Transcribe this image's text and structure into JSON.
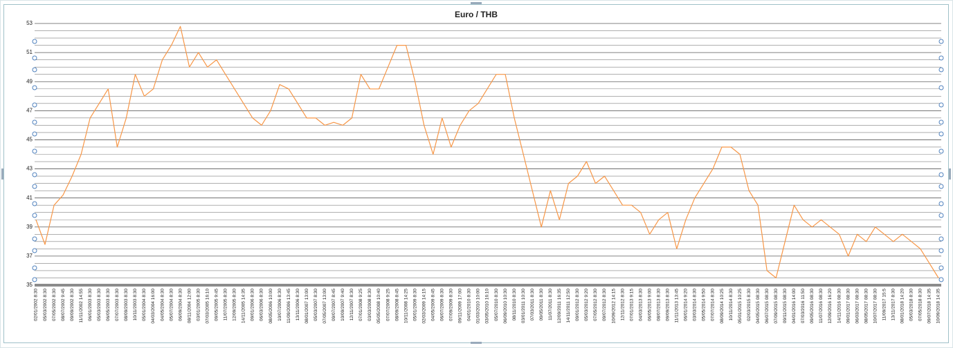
{
  "chart_data": {
    "type": "line",
    "title": "Euro / THB",
    "color": "#f79646",
    "ylim": [
      35,
      53
    ],
    "yticks": [
      35,
      37,
      39,
      41,
      43,
      45,
      47,
      49,
      51,
      53
    ],
    "minor_yticks": [
      35.5,
      36,
      36.5,
      37.5,
      38,
      38.5,
      39.5,
      40,
      40.5,
      41.5,
      42,
      42.5,
      43.5,
      44,
      44.5,
      45.5,
      46,
      46.5,
      47.5,
      48,
      48.5,
      49.5,
      50,
      50.5,
      51.5,
      52,
      52.5
    ],
    "grid": true,
    "categories": [
      "02/01/2002 8:30",
      "05/03/2002 8:30",
      "07/05/2002 8:30",
      "08/07/2002 9:45",
      "09/09/2002 8:30",
      "11/11/2002 14:55",
      "06/01/2003 8:30",
      "05/03/2003 8:30",
      "06/05/2003 8:30",
      "07/07/2003 8:30",
      "08/09/2003 8:30",
      "10/11/2003 8:30",
      "05/01/2004 8:30",
      "04/03/2004 16:00",
      "04/05/2004 8:30",
      "05/07/2004 8:30",
      "06/09/2004 8:30",
      "08/11/2004 12:00",
      "03/01/2005 8:30",
      "07/03/2005 16:10",
      "09/05/2005 9:45",
      "11/07/2005 8:30",
      "12/09/2005 8:30",
      "14/11/2005 14:35",
      "09/01/2006 8:30",
      "06/03/2006 8:30",
      "08/05/2006 10:00",
      "10/07/2006 8:30",
      "11/09/2006 13:45",
      "13/11/2006 8:30",
      "08/01/2007 13:00",
      "05/03/2007 8:30",
      "07/05/2007 13:00",
      "09/07/2007 8:45",
      "10/09/2007 9:40",
      "12/11/2007 8:30",
      "07/01/2008 9:25",
      "03/03/2008 8:30",
      "05/05/2008 10:40",
      "07/07/2008 9:25",
      "08/09/2008 8:45",
      "10/11/2008 14:25",
      "05/01/2009 8:30",
      "02/03/2009 14:15",
      "04/05/2009 8:45",
      "06/07/2009 8:30",
      "07/09/2009 8:30",
      "09/11/2009 17:00",
      "04/01/2010 8:30",
      "01/03/2010 10:00",
      "03/05/2010 16:10",
      "05/07/2010 8:30",
      "06/09/2010 10:30",
      "08/11/2010 8:30",
      "03/01/2011 10:30",
      "07/03/2011 8:30",
      "09/05/2011 8:30",
      "11/07/2011 8:30",
      "12/09/2011 16:35",
      "14/11/2011 12:50",
      "09/01/2012 8:30",
      "05/03/2012 9:20",
      "07/05/2012 8:30",
      "09/07/2012 8:30",
      "10/09/2012 14:15",
      "12/11/2012 8:30",
      "07/01/2013 9:15",
      "04/03/2013 8:30",
      "06/05/2013 9:00",
      "08/07/2013 8:30",
      "09/09/2013 8:30",
      "11/11/2013 13:45",
      "06/01/2014 9:20",
      "03/03/2014 8:30",
      "05/05/2014 9:50",
      "07/07/2014 8:30",
      "08/09/2014 10:25",
      "10/11/2014 8:30",
      "05/01/2015 10:25",
      "02/03/2015 8:30",
      "04/05/2015 08:30",
      "06/07/2015 08:30",
      "07/09/2015 08:30",
      "09/11/2015 08:30",
      "04/01/2016 14:00",
      "07/03/2016 11:50",
      "09/05/2016 08:30",
      "11/07/2016 08:30",
      "12/09/2016 16:20",
      "14/11/2016 08:30",
      "09/01/2017 08:30",
      "06/03/2017 08:30",
      "08/05/2017 08:30",
      "10/07/2017 08:30",
      "11/09/2017 15:5",
      "13/11/2017 8:30",
      "08/01/2018 14:20",
      "05/03/2018 8:30",
      "07/05/2018 8:30",
      "09/07/2018 14:35",
      "10/09/2018 14:35"
    ],
    "values": [
      39.5,
      37.8,
      40.5,
      41.2,
      42.5,
      44,
      46.5,
      47.5,
      48.5,
      44.5,
      46.5,
      49.5,
      48,
      48.5,
      50.5,
      51.5,
      52.8,
      50,
      51,
      50,
      50.5,
      49.5,
      48.5,
      47.5,
      46.5,
      46,
      47,
      48.8,
      48.5,
      47.5,
      46.5,
      46.5,
      46,
      46.2,
      46,
      46.5,
      49.5,
      48.5,
      48.5,
      50,
      51.5,
      51.5,
      49,
      46,
      44,
      46.5,
      44.5,
      46,
      47,
      47.5,
      48.5,
      49.5,
      49.5,
      46.5,
      44,
      41.5,
      39,
      41.5,
      39.5,
      42,
      42.5,
      43.5,
      42,
      42.5,
      41.5,
      40.5,
      40.5,
      40,
      38.5,
      39.5,
      40,
      37.5,
      39.5,
      41,
      42,
      43,
      44.5,
      44.5,
      44,
      41.5,
      40.5,
      36,
      35.5,
      38,
      40.5,
      39.5,
      39,
      39.5,
      39,
      38.5,
      37,
      38.5,
      38,
      39,
      38.5,
      38,
      38.5,
      38,
      37.5,
      36.5,
      35.5
    ]
  }
}
